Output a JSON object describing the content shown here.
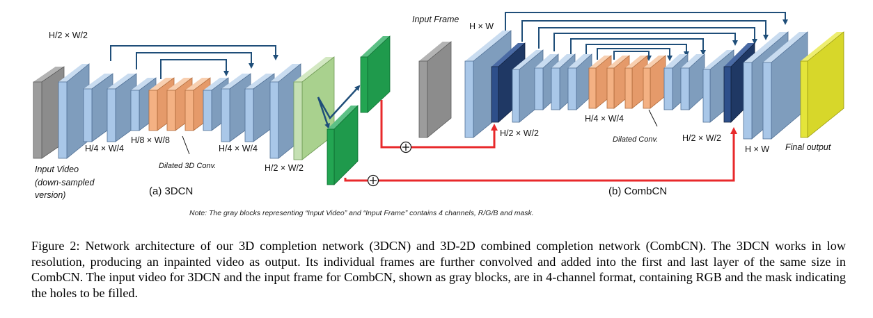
{
  "labels": {
    "hw2_top_left": "H/2 × W/2",
    "input_video": "Input Video",
    "down_sampled_1": "(down-sampled",
    "down_sampled_2": "version)",
    "h4w4_left": "H/4 × W/4",
    "h8w8": "H/8 × W/8",
    "dilated_3d": "Dilated 3D Conv.",
    "h4w4_right": "H/4 × W/4",
    "hw2_right": "H/2 × W/2",
    "title_3dcn": "(a) 3DCN",
    "input_frame": "Input Frame",
    "hw_top": "H × W",
    "hw2_comb_left": "H/2 × W/2",
    "h4w4_comb": "H/4 × W/4",
    "dilated_conv": "Dilated Conv.",
    "hw2_comb_right": "H/2 × W/2",
    "hw_bottom": "H × W",
    "final_output": "Final output",
    "title_combcn": "(b) CombCN",
    "note": "Note: The gray blocks representing “Input Video” and “Input Frame” contains 4 channels, R/G/B and mask."
  },
  "caption": "Figure 2: Network architecture of our 3D completion network (3DCN) and 3D-2D combined completion network (CombCN). The 3DCN works in low resolution, producing an inpainted video as output. Its individual frames are further convolved and added into the first and last layer of the same size in CombCN. The input video for 3DCN and the input frame for CombCN, shown as gray blocks, are in 4-channel format, containing RGB and the mask indicating the holes to be filled.",
  "colors": {
    "input_gray": "#8c8c8c",
    "conv_blue": "#7f9dbd",
    "light_blue": "#a9c7e8",
    "dilated_orange": "#f4b183",
    "output_green": "#a9d18e",
    "frame_green": "#1f9a4c",
    "dark_navy": "#1f3864",
    "final_yellow": "#d7d72a",
    "skip_arrow": "#1f4e79",
    "add_arrow": "#e8292b"
  }
}
